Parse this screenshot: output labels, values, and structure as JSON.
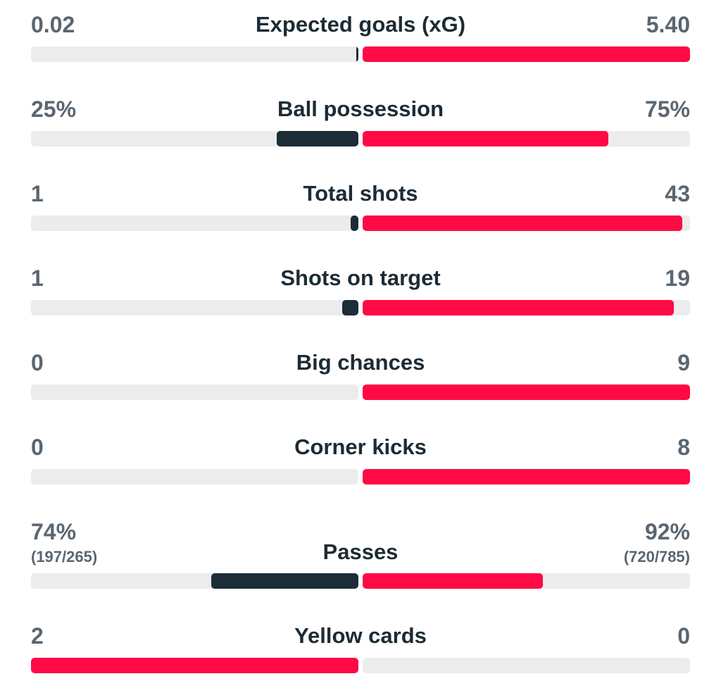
{
  "colors": {
    "home_leading": "#ff0a45",
    "home_trailing": "#1c2d38",
    "away_leading": "#ff0a45",
    "away_trailing": "#1c2d38",
    "track": "#ececec"
  },
  "stats": [
    {
      "label": "Expected goals (xG)",
      "home": "0.02",
      "away": "5.40",
      "home_share": 0.004,
      "away_share": 1.0
    },
    {
      "label": "Ball possession",
      "home": "25%",
      "away": "75%",
      "home_share": 0.25,
      "away_share": 0.75
    },
    {
      "label": "Total shots",
      "home": "1",
      "away": "43",
      "home_share": 0.023,
      "away_share": 0.977
    },
    {
      "label": "Shots on target",
      "home": "1",
      "away": "19",
      "home_share": 0.05,
      "away_share": 0.95
    },
    {
      "label": "Big chances",
      "home": "0",
      "away": "9",
      "home_share": 0.0,
      "away_share": 1.0
    },
    {
      "label": "Corner kicks",
      "home": "0",
      "away": "8",
      "home_share": 0.0,
      "away_share": 1.0
    },
    {
      "label": "Passes",
      "home": "74%",
      "home_sub": "(197/265)",
      "away": "92%",
      "away_sub": "(720/785)",
      "home_share": 0.45,
      "away_share": 0.55
    },
    {
      "label": "Yellow cards",
      "home": "2",
      "away": "0",
      "home_share": 1.0,
      "away_share": 0.0
    }
  ]
}
